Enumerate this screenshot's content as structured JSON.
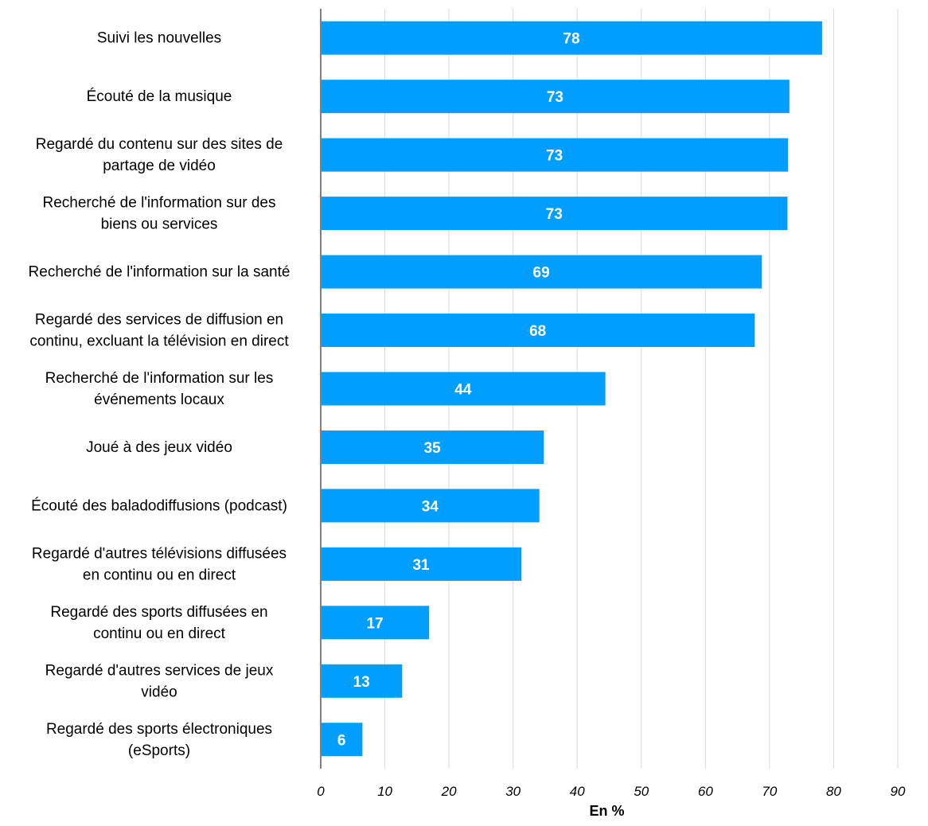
{
  "chart_data": {
    "type": "bar",
    "orientation": "horizontal",
    "categories": [
      "Suivi les nouvelles",
      "Écouté de la musique",
      "Regardé du contenu sur des sites de partage de vidéo",
      "Recherché de l'information sur des biens ou services",
      "Recherché de l'information sur la santé",
      "Regardé des services de diffusion en continu, excluant la télévision en direct",
      "Recherché de l'information sur les événements locaux",
      "Joué à des jeux vidéo",
      "Écouté des baladodiffusions (podcast)",
      "Regardé d'autres télévisions diffusées en continu ou en direct",
      "Regardé des sports diffusées en continu ou en direct",
      "Regardé d'autres services de jeux vidéo",
      "Regardé des sports électroniques (eSports)"
    ],
    "category_lines": [
      [
        "Suivi les nouvelles"
      ],
      [
        "Écouté de la musique"
      ],
      [
        "Regardé du contenu sur des sites de",
        "partage de vidéo"
      ],
      [
        "Recherché de l'information sur des",
        "biens ou services"
      ],
      [
        "Recherché de l'information sur la santé"
      ],
      [
        "Regardé des services de diffusion en",
        "continu, excluant la télévision en direct"
      ],
      [
        "Recherché de l'information sur les",
        "événements locaux"
      ],
      [
        "Joué à des jeux vidéo"
      ],
      [
        "Écouté des baladodiffusions (podcast)"
      ],
      [
        "Regardé d'autres télévisions diffusées",
        "en continu ou en direct"
      ],
      [
        "Regardé des sports diffusées en",
        "continu ou en direct"
      ],
      [
        "Regardé d'autres services de jeux",
        "vidéo"
      ],
      [
        "Regardé des sports électroniques",
        "(eSports)"
      ]
    ],
    "values": [
      78,
      73,
      73,
      73,
      69,
      68,
      44,
      35,
      34,
      31,
      17,
      13,
      6
    ],
    "value_labels": [
      "78",
      "73",
      "73",
      "73",
      "69",
      "68",
      "44",
      "35",
      "34",
      "31",
      "17",
      "13",
      "6"
    ],
    "bar_values": [
      78.2,
      73.1,
      72.9,
      72.8,
      68.8,
      67.7,
      44.4,
      34.8,
      34.1,
      31.3,
      16.9,
      12.7,
      6.5
    ],
    "xlim": [
      0,
      90
    ],
    "xticks": [
      "0",
      "10",
      "20",
      "30",
      "40",
      "50",
      "60",
      "70",
      "80",
      "90"
    ],
    "xlabel": "En %",
    "ylabel": "",
    "title": "",
    "grid": "vertical",
    "legend": "none",
    "colors": {
      "bar": "#009FFF",
      "grid": "#D9D9D9",
      "axis": "#000000",
      "value_text": "#FFFFFF"
    }
  }
}
